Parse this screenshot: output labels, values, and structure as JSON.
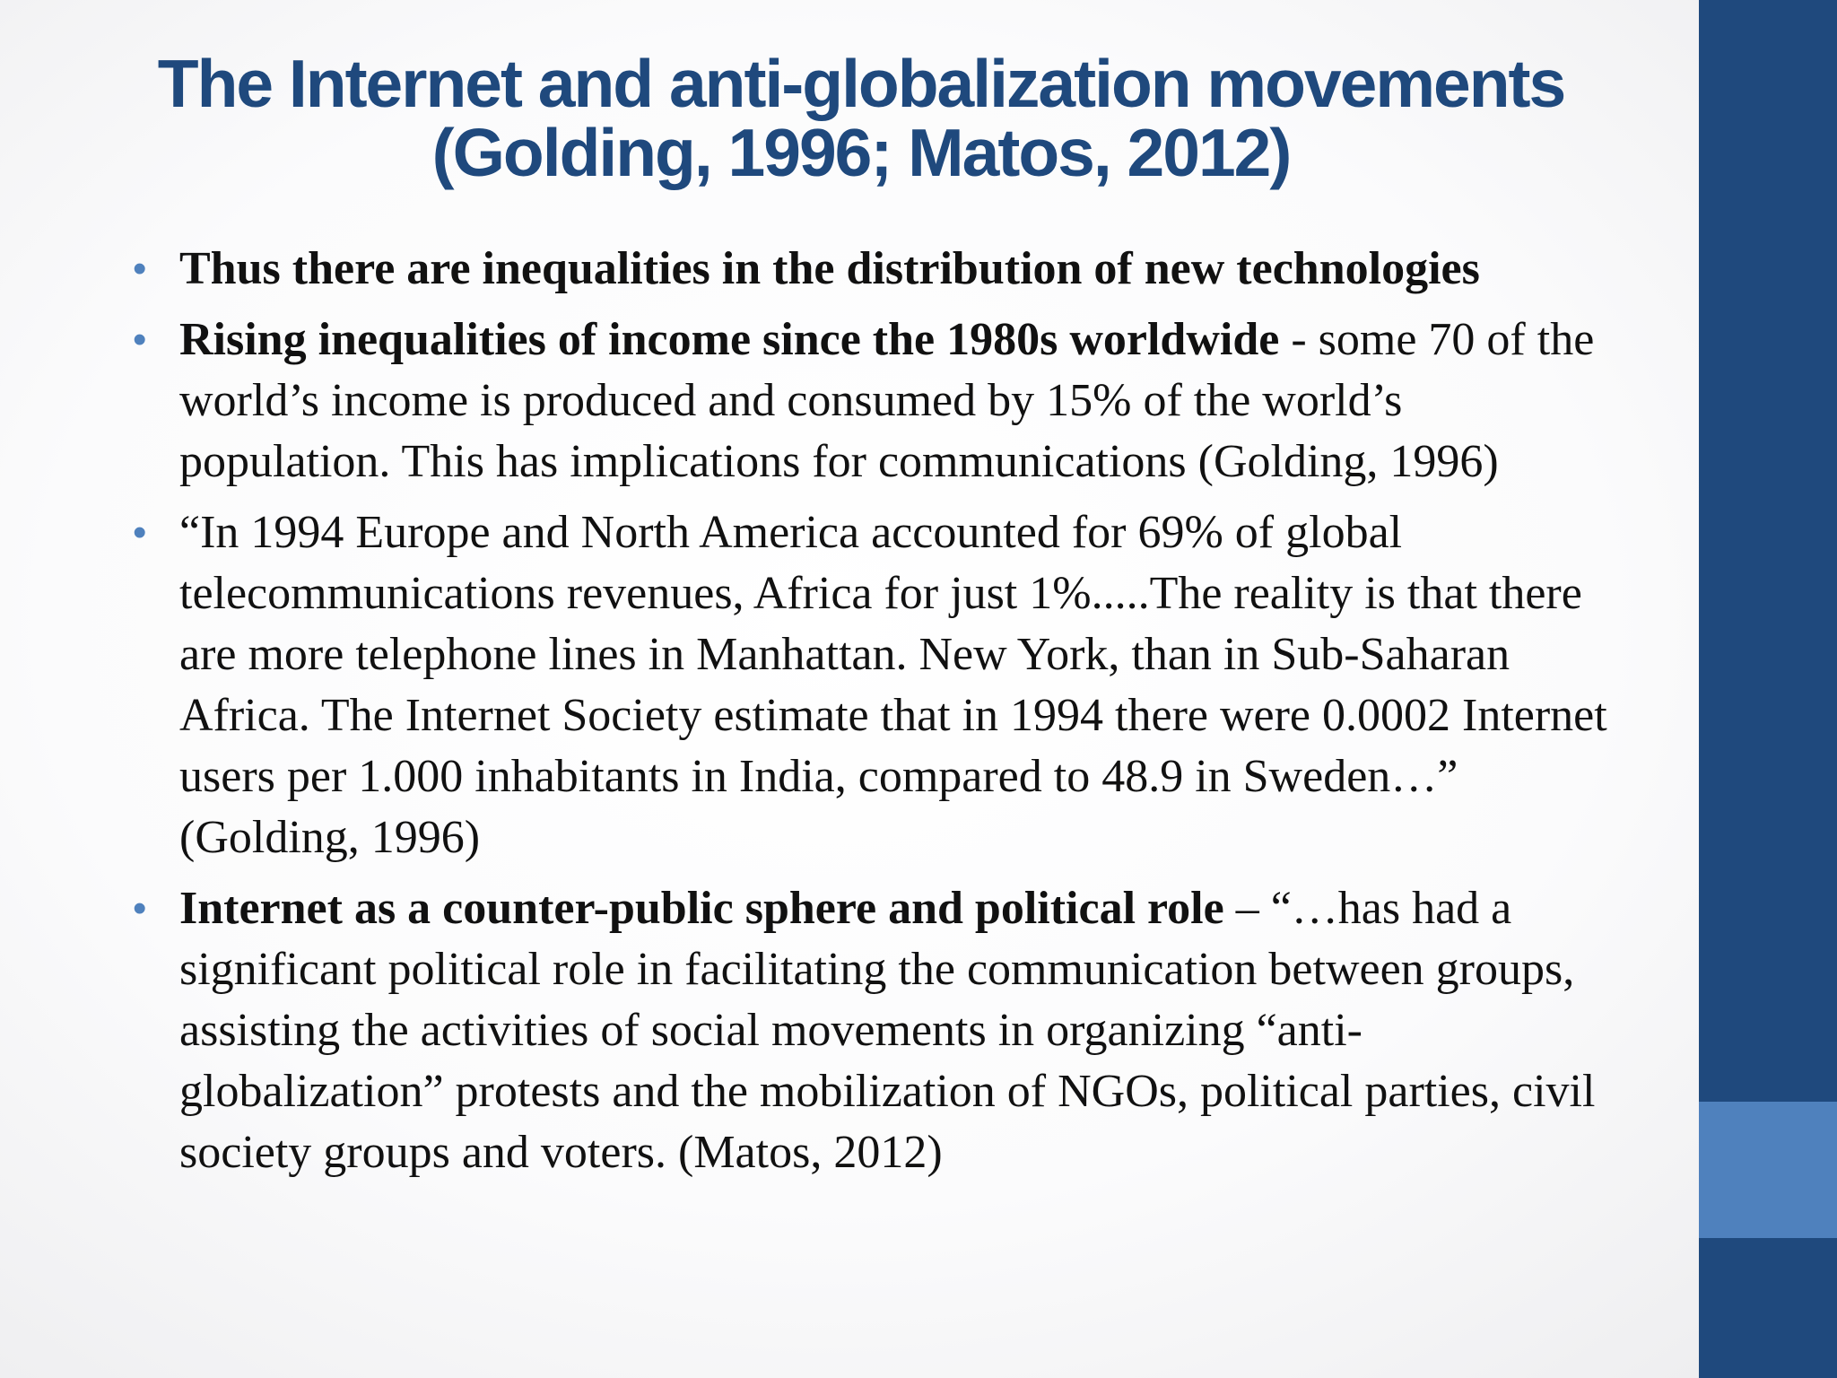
{
  "slide": {
    "title_line1": "The Internet and anti-globalization movements",
    "title_line2": "(Golding, 1996; Matos, 2012)",
    "bullet_symbol": "•",
    "bullets": [
      {
        "bold": "Thus there are inequalities in the distribution of new technologies",
        "text": ""
      },
      {
        "bold": "Rising inequalities of income since the 1980s worldwide",
        "text": " -  some 70 of the world’s income is produced and consumed by 15% of the world’s population. This has implications for communications (Golding, 1996)"
      },
      {
        "bold": "",
        "text": "“In 1994 Europe and North America accounted for 69% of global telecommunications revenues, Africa for just 1%.....The reality is that there are more telephone lines in Manhattan. New York, than in Sub-Saharan Africa. The Internet Society estimate that in 1994 there were 0.0002 Internet users per 1.000 inhabitants in India, compared to 48.9 in Sweden…” (Golding, 1996)"
      },
      {
        "bold": "Internet as a counter-public sphere and political role",
        "text": " – “…has had a significant political role in facilitating the communication between groups, assisting the activities of social movements in organizing “anti-globalization” protests and the mobilization of NGOs, political parties, civil society groups and voters. (Matos, 2012)"
      }
    ]
  },
  "colors": {
    "title": "#1f497d",
    "bullet": "#4f81bd",
    "side_bar": "#1f497d",
    "side_accent": "#4f81bd",
    "body_text": "#111111"
  }
}
